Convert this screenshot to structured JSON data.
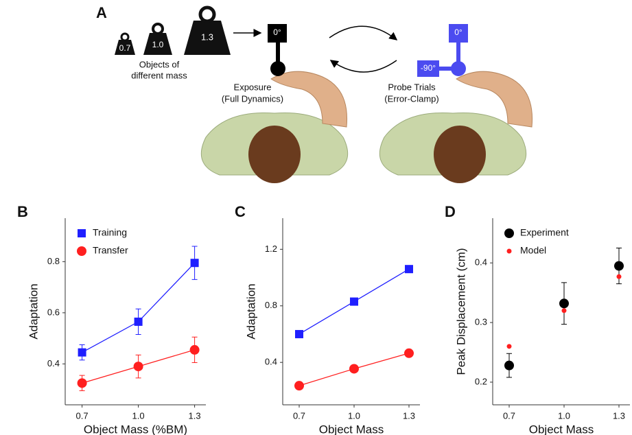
{
  "panel_a": {
    "panel": "A",
    "weights": [
      "0.7",
      "1.0",
      "1.3"
    ],
    "objects_label": [
      "Objects of",
      "different mass"
    ],
    "exposure_angle": "0°",
    "exposure_label": [
      "Exposure",
      "(Full Dynamics)"
    ],
    "probe_angle": "0°",
    "probe_side_angle": "-90°",
    "probe_label": [
      "Probe Trials",
      "(Error-Clamp)"
    ]
  },
  "chart_data": [
    {
      "type": "scatter",
      "panel": "B",
      "x_label": "Object Mass (%BM)",
      "y_label": "Adaptation",
      "x": [
        0.7,
        {
          "value": 1,
          "label": "1.0"
        },
        1.3
      ],
      "xlim": [
        0.61,
        1.36
      ],
      "xticks": [
        0.7,
        {
          "value": 1,
          "label": "1.0"
        },
        1.3
      ],
      "ylim": [
        0.24,
        0.97
      ],
      "yticks": [
        0.4,
        0.6,
        0.8
      ],
      "legend": "upper left",
      "lines": true,
      "series": [
        {
          "name": "Training",
          "color": "#1f1fff",
          "marker": "square",
          "values": [
            0.445,
            0.565,
            0.795
          ],
          "errors": [
            0.03,
            0.05,
            0.065
          ]
        },
        {
          "name": "Transfer",
          "color": "#ff1f1f",
          "marker": "circle",
          "values": [
            0.325,
            0.39,
            0.455
          ],
          "errors": [
            0.03,
            0.045,
            0.05
          ]
        }
      ]
    },
    {
      "type": "scatter",
      "panel": "C",
      "x_label": "Object Mass",
      "y_label": "Adaptation",
      "x": [
        0.7,
        {
          "value": 1,
          "label": "1.0"
        },
        1.3
      ],
      "xlim": [
        0.61,
        1.36
      ],
      "xticks": [
        0.7,
        {
          "value": 1,
          "label": "1.0"
        },
        1.3
      ],
      "ylim": [
        0.1,
        1.42
      ],
      "yticks": [
        0.4,
        0.8,
        1.2
      ],
      "lines": true,
      "series": [
        {
          "color": "#1f1fff",
          "marker": "square",
          "values": [
            0.6,
            0.83,
            1.06
          ]
        },
        {
          "color": "#ff1f1f",
          "marker": "circle",
          "values": [
            0.235,
            0.355,
            0.465
          ]
        }
      ]
    },
    {
      "type": "scatter",
      "panel": "D",
      "x_label": "Object Mass",
      "y_label": "Peak Displacement (cm)",
      "x": [
        0.7,
        {
          "value": 1,
          "label": "1.0"
        },
        1.3
      ],
      "xlim": [
        0.61,
        1.36
      ],
      "xticks": [
        0.7,
        {
          "value": 1,
          "label": "1.0"
        },
        1.3
      ],
      "ylim": [
        0.162,
        0.475
      ],
      "yticks": [
        0.2,
        0.3,
        0.4
      ],
      "legend": "upper left",
      "lines": false,
      "series": [
        {
          "name": "Experiment",
          "color": "#000000",
          "marker": "circle",
          "values": [
            0.228,
            0.332,
            0.395
          ],
          "errors": [
            0.02,
            0.035,
            0.03
          ]
        },
        {
          "name": "Model",
          "color": "#ff1f1f",
          "marker": "dot",
          "values": [
            0.26,
            0.32,
            0.377
          ]
        }
      ]
    }
  ]
}
